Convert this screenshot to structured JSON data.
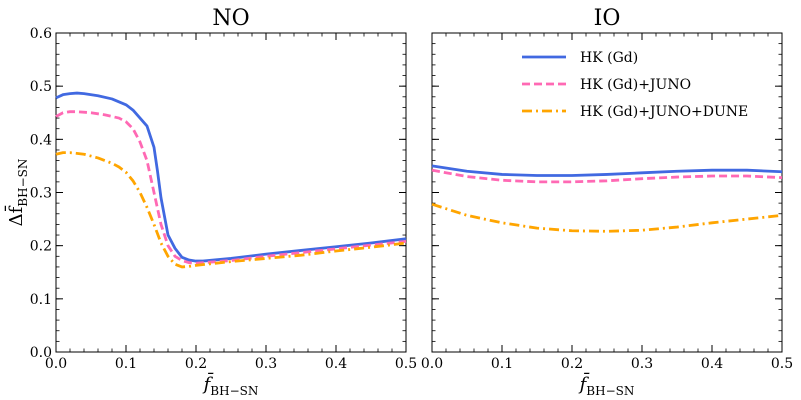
{
  "chart_data": [
    {
      "type": "line",
      "title": "NO",
      "xlabel": "f̄",
      "xlabel_sub": "BH−SN",
      "ylabel": "Δf̄",
      "ylabel_sub": "BH−SN",
      "xlim": [
        0.0,
        0.5
      ],
      "ylim": [
        0.0,
        0.6
      ],
      "xticks": [
        "0.0",
        "0.1",
        "0.2",
        "0.3",
        "0.4",
        "0.5"
      ],
      "yticks": [
        "0.0",
        "0.1",
        "0.2",
        "0.3",
        "0.4",
        "0.5",
        "0.6"
      ],
      "series": [
        {
          "name": "HK (Gd)",
          "color": "#4169e1",
          "style": "solid",
          "x": [
            0.0,
            0.01,
            0.02,
            0.03,
            0.04,
            0.06,
            0.08,
            0.1,
            0.11,
            0.12,
            0.13,
            0.14,
            0.145,
            0.15,
            0.16,
            0.17,
            0.18,
            0.19,
            0.2,
            0.21,
            0.25,
            0.3,
            0.35,
            0.4,
            0.45,
            0.5
          ],
          "y": [
            0.478,
            0.484,
            0.486,
            0.487,
            0.486,
            0.482,
            0.476,
            0.465,
            0.455,
            0.44,
            0.425,
            0.385,
            0.34,
            0.29,
            0.22,
            0.195,
            0.178,
            0.173,
            0.171,
            0.171,
            0.176,
            0.184,
            0.191,
            0.198,
            0.205,
            0.213
          ]
        },
        {
          "name": "HK (Gd)+JUNO",
          "color": "#ff69b4",
          "style": "dashed",
          "x": [
            0.0,
            0.01,
            0.02,
            0.03,
            0.05,
            0.07,
            0.09,
            0.1,
            0.11,
            0.12,
            0.13,
            0.14,
            0.15,
            0.16,
            0.17,
            0.18,
            0.19,
            0.2,
            0.25,
            0.3,
            0.35,
            0.4,
            0.45,
            0.5
          ],
          "y": [
            0.443,
            0.45,
            0.452,
            0.452,
            0.45,
            0.446,
            0.44,
            0.433,
            0.42,
            0.395,
            0.36,
            0.3,
            0.24,
            0.2,
            0.18,
            0.172,
            0.168,
            0.167,
            0.172,
            0.18,
            0.187,
            0.194,
            0.201,
            0.208
          ]
        },
        {
          "name": "HK (Gd)+JUNO+DUNE",
          "color": "#ffa500",
          "style": "dashdot",
          "x": [
            0.0,
            0.01,
            0.02,
            0.04,
            0.06,
            0.08,
            0.09,
            0.1,
            0.11,
            0.12,
            0.13,
            0.14,
            0.15,
            0.16,
            0.17,
            0.18,
            0.19,
            0.2,
            0.25,
            0.3,
            0.35,
            0.4,
            0.45,
            0.5
          ],
          "y": [
            0.372,
            0.375,
            0.375,
            0.372,
            0.365,
            0.355,
            0.348,
            0.338,
            0.322,
            0.3,
            0.272,
            0.24,
            0.205,
            0.18,
            0.165,
            0.16,
            0.161,
            0.163,
            0.17,
            0.176,
            0.182,
            0.19,
            0.197,
            0.205
          ]
        }
      ]
    },
    {
      "type": "line",
      "title": "IO",
      "xlabel": "f̄",
      "xlabel_sub": "BH−SN",
      "xlim": [
        0.0,
        0.5
      ],
      "ylim": [
        0.0,
        0.6
      ],
      "xticks": [
        "0.0",
        "0.1",
        "0.2",
        "0.3",
        "0.4",
        "0.5"
      ],
      "legend": "top-right",
      "series": [
        {
          "name": "HK (Gd)",
          "color": "#4169e1",
          "style": "solid",
          "x": [
            0.0,
            0.05,
            0.1,
            0.15,
            0.2,
            0.25,
            0.3,
            0.35,
            0.4,
            0.45,
            0.5
          ],
          "y": [
            0.35,
            0.34,
            0.334,
            0.332,
            0.332,
            0.334,
            0.337,
            0.34,
            0.342,
            0.342,
            0.339
          ]
        },
        {
          "name": "HK (Gd)+JUNO",
          "color": "#ff69b4",
          "style": "dashed",
          "x": [
            0.0,
            0.05,
            0.1,
            0.15,
            0.2,
            0.25,
            0.3,
            0.35,
            0.4,
            0.45,
            0.5
          ],
          "y": [
            0.342,
            0.33,
            0.323,
            0.32,
            0.32,
            0.322,
            0.326,
            0.329,
            0.331,
            0.331,
            0.328
          ]
        },
        {
          "name": "HK (Gd)+JUNO+DUNE",
          "color": "#ffa500",
          "style": "dashdot",
          "x": [
            0.0,
            0.05,
            0.1,
            0.15,
            0.2,
            0.25,
            0.3,
            0.35,
            0.4,
            0.45,
            0.5
          ],
          "y": [
            0.278,
            0.257,
            0.243,
            0.233,
            0.228,
            0.227,
            0.229,
            0.235,
            0.243,
            0.25,
            0.257
          ]
        }
      ]
    }
  ]
}
